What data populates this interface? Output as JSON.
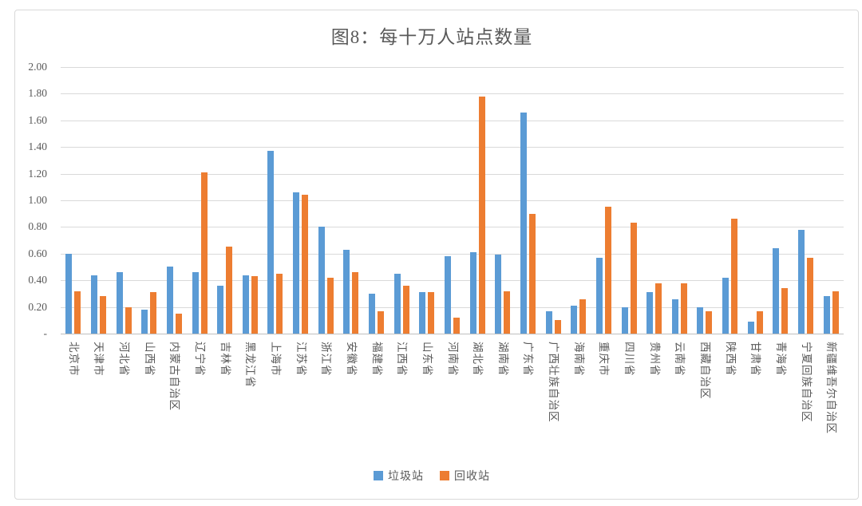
{
  "chart_data": {
    "type": "bar",
    "title": "图8：每十万人站点数量",
    "categories": [
      "北京市",
      "天津市",
      "河北省",
      "山西省",
      "内蒙古自治区",
      "辽宁省",
      "吉林省",
      "黑龙江省",
      "上海市",
      "江苏省",
      "浙江省",
      "安徽省",
      "福建省",
      "江西省",
      "山东省",
      "河南省",
      "湖北省",
      "湖南省",
      "广东省",
      "广西壮族自治区",
      "海南省",
      "重庆市",
      "四川省",
      "贵州省",
      "云南省",
      "西藏自治区",
      "陕西省",
      "甘肃省",
      "青海省",
      "宁夏回族自治区",
      "新疆维吾尔自治区"
    ],
    "series": [
      {
        "name": "垃圾站",
        "color": "#5B9BD5",
        "values": [
          0.6,
          0.44,
          0.46,
          0.18,
          0.5,
          0.46,
          0.36,
          0.44,
          1.37,
          1.06,
          0.8,
          0.63,
          0.3,
          0.45,
          0.31,
          0.58,
          0.61,
          0.59,
          1.66,
          0.17,
          0.21,
          0.57,
          0.2,
          0.31,
          0.26,
          0.2,
          0.42,
          0.09,
          0.64,
          0.78,
          0.28
        ]
      },
      {
        "name": "回收站",
        "color": "#ED7D31",
        "values": [
          0.32,
          0.28,
          0.2,
          0.31,
          0.15,
          1.21,
          0.65,
          0.43,
          0.45,
          1.04,
          0.42,
          0.46,
          0.17,
          0.36,
          0.31,
          0.12,
          1.78,
          0.32,
          0.9,
          0.1,
          0.26,
          0.95,
          0.83,
          0.38,
          0.38,
          0.17,
          0.86,
          0.17,
          0.34,
          0.57,
          0.32
        ]
      }
    ],
    "xlabel": "",
    "ylabel": "",
    "ylim": [
      0,
      2
    ],
    "y_ticks": [
      2.0,
      1.8,
      1.6,
      1.4,
      1.2,
      1.0,
      0.8,
      0.6,
      0.4,
      0.2,
      0
    ],
    "y_tick_labels": [
      "2.00",
      "1.80",
      "1.60",
      "1.40",
      "1.20",
      "1.00",
      "0.80",
      "0.60",
      "0.40",
      "0.20",
      "-"
    ],
    "grid": "horizontal",
    "legend_position": "bottom"
  },
  "colors": {
    "background": "#FFFFFF",
    "border": "#D9D9D9",
    "gridline": "#D9D9D9",
    "axisline": "#BFBFBF",
    "text": "#595959",
    "series_blue": "#5B9BD5",
    "series_orange": "#ED7D31"
  }
}
